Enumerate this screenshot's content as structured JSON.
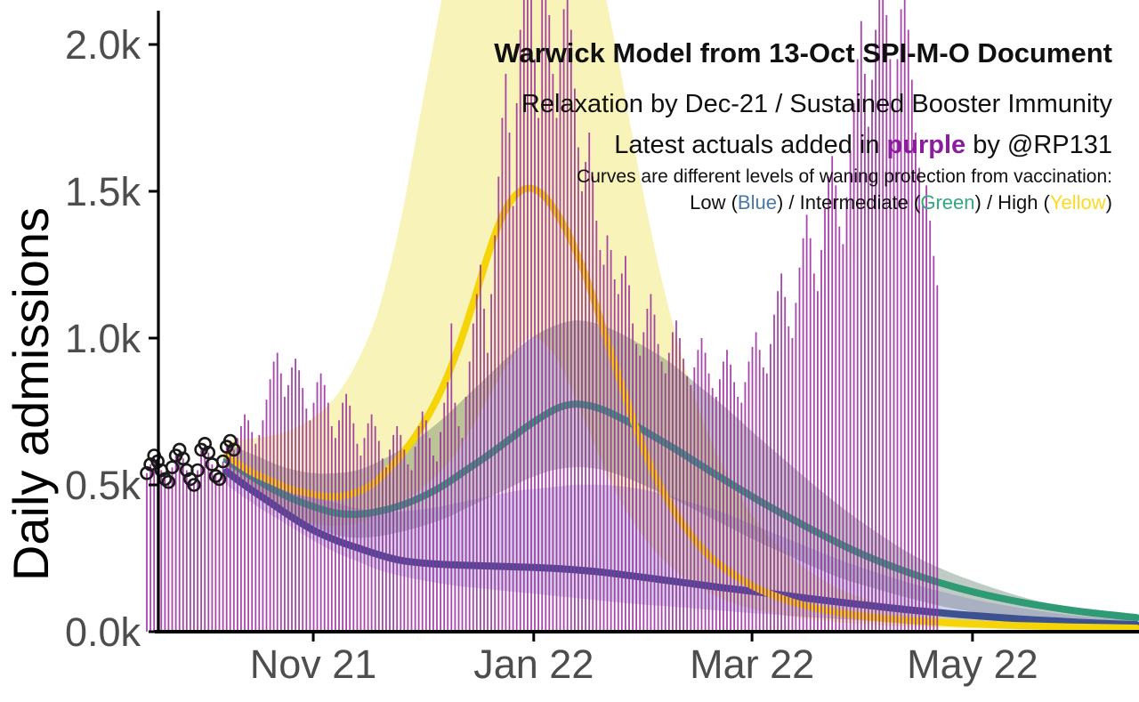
{
  "chart_data": {
    "type": "bar",
    "title": "Warwick Model from 13-Oct SPI-M-O Document",
    "subtitle1": "Relaxation by Dec-21 / Sustained Booster Immunity",
    "subtitle2": {
      "pre": "Latest actuals added in ",
      "word": "purple",
      "post": " by @RP131"
    },
    "notes": {
      "waning_header": "Curves are different levels of waning protection from vaccination:",
      "low_pre": "Low (",
      "low_word": "Blue",
      "mid_pre": ") / Intermediate (",
      "mid_word": "Green",
      "high_pre": ") / High (",
      "high_word": "Yellow",
      "high_post": ")"
    },
    "ylabel": "Daily admissions",
    "y_unit": "k (thousands of admissions per day)",
    "ylim": [
      0,
      2.15
    ],
    "x_unit": "days (one purple bar per day)",
    "x_day_range": [
      -3,
      274
    ],
    "y_ticks": [
      {
        "label": "0.0k",
        "value": 0
      },
      {
        "label": "0.5k",
        "value": 0.5
      },
      {
        "label": "1.0k",
        "value": 1.0
      },
      {
        "label": "1.5k",
        "value": 1.5
      },
      {
        "label": "2.0k",
        "value": 2.0
      }
    ],
    "x_ticks": [
      {
        "label": "Nov 21",
        "day": 45.9
      },
      {
        "label": "Jan 22",
        "day": 106.7
      },
      {
        "label": "Mar 22",
        "day": 166.9
      },
      {
        "label": "May 22",
        "day": 227.7
      }
    ],
    "series": {
      "actuals_bars": {
        "name": "Latest actual daily admissions (purple bars)",
        "start_day": 0,
        "clip_value": 2.15,
        "values": [
          0.54,
          0.57,
          0.6,
          0.58,
          0.55,
          0.52,
          0.51,
          0.56,
          0.6,
          0.62,
          0.59,
          0.55,
          0.52,
          0.5,
          0.55,
          0.62,
          0.64,
          0.61,
          0.57,
          0.53,
          0.52,
          0.58,
          0.63,
          0.65,
          0.62,
          0.66,
          0.7,
          0.74,
          0.72,
          0.68,
          0.64,
          0.67,
          0.72,
          0.79,
          0.86,
          0.92,
          0.95,
          0.88,
          0.8,
          0.84,
          0.9,
          0.93,
          0.89,
          0.83,
          0.76,
          0.72,
          0.78,
          0.85,
          0.88,
          0.84,
          0.78,
          0.7,
          0.66,
          0.72,
          0.78,
          0.81,
          0.77,
          0.71,
          0.64,
          0.6,
          0.66,
          0.71,
          0.74,
          0.7,
          0.65,
          0.59,
          0.56,
          0.62,
          0.67,
          0.7,
          0.67,
          0.62,
          0.57,
          0.55,
          0.63,
          0.7,
          0.75,
          0.72,
          0.66,
          0.6,
          0.58,
          0.68,
          0.78,
          0.85,
          1.05,
          0.78,
          0.7,
          0.66,
          0.8,
          0.92,
          1.05,
          1.15,
          1.25,
          1.1,
          0.95,
          1.15,
          1.35,
          1.55,
          1.75,
          1.9,
          1.7,
          1.45,
          1.8,
          2.05,
          2.18,
          2.2,
          2.16,
          1.95,
          1.75,
          2.18,
          2.2,
          2.1,
          1.9,
          1.75,
          1.95,
          2.12,
          2.2,
          2.05,
          1.85,
          1.65,
          1.5,
          1.6,
          1.7,
          1.55,
          1.4,
          1.3,
          1.25,
          1.35,
          1.3,
          1.2,
          1.15,
          1.22,
          1.28,
          1.18,
          1.05,
          0.98,
          0.94,
          1.02,
          1.1,
          1.15,
          1.08,
          0.98,
          0.92,
          0.88,
          0.95,
          1.02,
          1.06,
          1.0,
          0.93,
          0.87,
          0.84,
          0.9,
          0.96,
          1.0,
          0.95,
          0.88,
          0.83,
          0.8,
          0.86,
          0.92,
          0.96,
          0.91,
          0.85,
          0.8,
          0.78,
          0.85,
          0.92,
          0.97,
          1.02,
          0.96,
          0.9,
          0.88,
          0.98,
          1.08,
          1.16,
          1.22,
          1.14,
          1.04,
          1.0,
          1.12,
          1.24,
          1.34,
          1.42,
          1.34,
          1.22,
          1.16,
          1.3,
          1.44,
          1.55,
          1.62,
          1.52,
          1.38,
          1.32,
          1.48,
          1.64,
          1.8,
          1.95,
          2.08,
          1.9,
          1.72,
          1.88,
          2.05,
          2.2,
          2.18,
          2.1,
          1.95,
          1.78,
          1.95,
          2.12,
          2.2,
          2.05,
          1.88,
          1.7,
          1.58,
          1.45,
          1.52,
          1.4,
          1.28,
          1.18
        ]
      },
      "document_actuals_points": {
        "name": "Actuals shown in SPI-M-O document (black open circles)",
        "start_day": 0,
        "values": [
          0.54,
          0.57,
          0.6,
          0.58,
          0.55,
          0.52,
          0.51,
          0.56,
          0.6,
          0.62,
          0.59,
          0.55,
          0.52,
          0.5,
          0.55,
          0.62,
          0.64,
          0.61,
          0.57,
          0.53,
          0.52,
          0.58,
          0.63,
          0.65,
          0.62
        ]
      },
      "model_low_waning_blue": {
        "name": "Low waning (Blue)",
        "points": [
          [
            22,
            0.545
          ],
          [
            28,
            0.49
          ],
          [
            34,
            0.44
          ],
          [
            40,
            0.39
          ],
          [
            46,
            0.345
          ],
          [
            52,
            0.312
          ],
          [
            58,
            0.286
          ],
          [
            64,
            0.262
          ],
          [
            70,
            0.243
          ],
          [
            78,
            0.232
          ],
          [
            86,
            0.227
          ],
          [
            94,
            0.224
          ],
          [
            102,
            0.221
          ],
          [
            110,
            0.217
          ],
          [
            118,
            0.211
          ],
          [
            126,
            0.202
          ],
          [
            134,
            0.19
          ],
          [
            142,
            0.177
          ],
          [
            150,
            0.164
          ],
          [
            158,
            0.151
          ],
          [
            166,
            0.139
          ],
          [
            174,
            0.127
          ],
          [
            182,
            0.114
          ],
          [
            190,
            0.102
          ],
          [
            198,
            0.091
          ],
          [
            206,
            0.08
          ],
          [
            214,
            0.07
          ],
          [
            222,
            0.061
          ],
          [
            230,
            0.053
          ],
          [
            240,
            0.044
          ],
          [
            250,
            0.037
          ],
          [
            262,
            0.029
          ],
          [
            273,
            0.024
          ]
        ]
      },
      "model_intermediate_waning_green": {
        "name": "Intermediate waning (Green)",
        "points": [
          [
            22,
            0.585
          ],
          [
            30,
            0.52
          ],
          [
            38,
            0.465
          ],
          [
            45,
            0.43
          ],
          [
            52,
            0.405
          ],
          [
            58,
            0.4
          ],
          [
            64,
            0.41
          ],
          [
            70,
            0.43
          ],
          [
            76,
            0.46
          ],
          [
            82,
            0.5
          ],
          [
            88,
            0.55
          ],
          [
            94,
            0.6
          ],
          [
            100,
            0.655
          ],
          [
            105,
            0.7
          ],
          [
            110,
            0.74
          ],
          [
            114,
            0.765
          ],
          [
            118,
            0.775
          ],
          [
            122,
            0.77
          ],
          [
            126,
            0.755
          ],
          [
            130,
            0.732
          ],
          [
            135,
            0.7
          ],
          [
            140,
            0.664
          ],
          [
            146,
            0.62
          ],
          [
            152,
            0.573
          ],
          [
            158,
            0.527
          ],
          [
            164,
            0.482
          ],
          [
            170,
            0.438
          ],
          [
            177,
            0.39
          ],
          [
            184,
            0.344
          ],
          [
            191,
            0.3
          ],
          [
            198,
            0.26
          ],
          [
            206,
            0.22
          ],
          [
            214,
            0.185
          ],
          [
            222,
            0.155
          ],
          [
            230,
            0.129
          ],
          [
            240,
            0.103
          ],
          [
            250,
            0.082
          ],
          [
            260,
            0.065
          ],
          [
            273,
            0.048
          ]
        ]
      },
      "model_high_waning_yellow": {
        "name": "High waning (Yellow)",
        "points": [
          [
            22,
            0.6
          ],
          [
            28,
            0.55
          ],
          [
            34,
            0.515
          ],
          [
            40,
            0.485
          ],
          [
            46,
            0.468
          ],
          [
            51,
            0.46
          ],
          [
            56,
            0.468
          ],
          [
            62,
            0.5
          ],
          [
            66,
            0.545
          ],
          [
            70,
            0.6
          ],
          [
            74,
            0.665
          ],
          [
            78,
            0.745
          ],
          [
            82,
            0.845
          ],
          [
            86,
            0.97
          ],
          [
            90,
            1.12
          ],
          [
            94,
            1.28
          ],
          [
            97,
            1.385
          ],
          [
            100,
            1.46
          ],
          [
            103,
            1.5
          ],
          [
            106,
            1.51
          ],
          [
            109,
            1.49
          ],
          [
            112,
            1.445
          ],
          [
            116,
            1.36
          ],
          [
            120,
            1.245
          ],
          [
            124,
            1.105
          ],
          [
            128,
            0.95
          ],
          [
            132,
            0.8
          ],
          [
            136,
            0.655
          ],
          [
            140,
            0.535
          ],
          [
            145,
            0.42
          ],
          [
            150,
            0.33
          ],
          [
            155,
            0.26
          ],
          [
            160,
            0.21
          ],
          [
            166,
            0.163
          ],
          [
            172,
            0.128
          ],
          [
            180,
            0.094
          ],
          [
            190,
            0.066
          ],
          [
            200,
            0.049
          ],
          [
            212,
            0.037
          ],
          [
            225,
            0.028
          ],
          [
            240,
            0.021
          ],
          [
            255,
            0.016
          ],
          [
            273,
            0.012
          ]
        ]
      }
    },
    "bands": {
      "high_waning_yellow_ci": [
        [
          22,
          0.56,
          0.65
        ],
        [
          30,
          0.46,
          0.66
        ],
        [
          38,
          0.4,
          0.68
        ],
        [
          46,
          0.37,
          0.73
        ],
        [
          52,
          0.36,
          0.8
        ],
        [
          58,
          0.37,
          0.92
        ],
        [
          64,
          0.4,
          1.1
        ],
        [
          70,
          0.44,
          1.4
        ],
        [
          76,
          0.49,
          1.8
        ],
        [
          82,
          0.56,
          2.2
        ],
        [
          88,
          0.66,
          2.6
        ],
        [
          100,
          0.92,
          2.6
        ],
        [
          106,
          1.0,
          2.6
        ],
        [
          112,
          0.95,
          2.6
        ],
        [
          118,
          0.8,
          2.55
        ],
        [
          124,
          0.62,
          2.3
        ],
        [
          130,
          0.46,
          1.95
        ],
        [
          136,
          0.34,
          1.55
        ],
        [
          142,
          0.25,
          1.2
        ],
        [
          148,
          0.185,
          0.92
        ],
        [
          154,
          0.14,
          0.7
        ],
        [
          160,
          0.105,
          0.54
        ],
        [
          168,
          0.075,
          0.38
        ],
        [
          176,
          0.055,
          0.27
        ],
        [
          186,
          0.038,
          0.18
        ],
        [
          196,
          0.027,
          0.12
        ],
        [
          208,
          0.018,
          0.08
        ],
        [
          220,
          0.013,
          0.055
        ],
        [
          235,
          0.009,
          0.035
        ],
        [
          255,
          0.006,
          0.022
        ],
        [
          273,
          0.005,
          0.015
        ]
      ],
      "intermediate_waning_green_ci": [
        [
          22,
          0.54,
          0.64
        ],
        [
          30,
          0.46,
          0.6
        ],
        [
          38,
          0.4,
          0.56
        ],
        [
          46,
          0.36,
          0.54
        ],
        [
          52,
          0.33,
          0.54
        ],
        [
          58,
          0.32,
          0.55
        ],
        [
          64,
          0.325,
          0.58
        ],
        [
          70,
          0.34,
          0.62
        ],
        [
          76,
          0.36,
          0.67
        ],
        [
          82,
          0.385,
          0.73
        ],
        [
          88,
          0.42,
          0.8
        ],
        [
          94,
          0.455,
          0.87
        ],
        [
          100,
          0.49,
          0.94
        ],
        [
          106,
          0.525,
          1.0
        ],
        [
          112,
          0.55,
          1.04
        ],
        [
          118,
          0.56,
          1.06
        ],
        [
          124,
          0.555,
          1.05
        ],
        [
          130,
          0.535,
          1.02
        ],
        [
          136,
          0.505,
          0.98
        ],
        [
          144,
          0.46,
          0.92
        ],
        [
          152,
          0.41,
          0.84
        ],
        [
          160,
          0.36,
          0.76
        ],
        [
          168,
          0.31,
          0.67
        ],
        [
          176,
          0.265,
          0.585
        ],
        [
          184,
          0.22,
          0.5
        ],
        [
          192,
          0.18,
          0.42
        ],
        [
          200,
          0.15,
          0.35
        ],
        [
          210,
          0.115,
          0.27
        ],
        [
          220,
          0.085,
          0.21
        ],
        [
          232,
          0.06,
          0.155
        ],
        [
          244,
          0.042,
          0.11
        ],
        [
          258,
          0.028,
          0.075
        ],
        [
          273,
          0.02,
          0.05
        ]
      ],
      "low_waning_blue_ci": [
        [
          22,
          0.5,
          0.6
        ],
        [
          30,
          0.43,
          0.55
        ],
        [
          38,
          0.37,
          0.5
        ],
        [
          46,
          0.31,
          0.46
        ],
        [
          52,
          0.27,
          0.44
        ],
        [
          58,
          0.24,
          0.42
        ],
        [
          64,
          0.21,
          0.41
        ],
        [
          70,
          0.19,
          0.41
        ],
        [
          78,
          0.17,
          0.42
        ],
        [
          86,
          0.155,
          0.44
        ],
        [
          94,
          0.145,
          0.46
        ],
        [
          102,
          0.135,
          0.48
        ],
        [
          110,
          0.125,
          0.49
        ],
        [
          118,
          0.115,
          0.5
        ],
        [
          126,
          0.105,
          0.5
        ],
        [
          134,
          0.095,
          0.49
        ],
        [
          142,
          0.088,
          0.47
        ],
        [
          150,
          0.08,
          0.44
        ],
        [
          158,
          0.072,
          0.41
        ],
        [
          166,
          0.064,
          0.37
        ],
        [
          174,
          0.057,
          0.33
        ],
        [
          182,
          0.05,
          0.29
        ],
        [
          190,
          0.044,
          0.25
        ],
        [
          198,
          0.038,
          0.215
        ],
        [
          208,
          0.031,
          0.175
        ],
        [
          218,
          0.025,
          0.14
        ],
        [
          230,
          0.019,
          0.105
        ],
        [
          244,
          0.014,
          0.075
        ],
        [
          258,
          0.011,
          0.052
        ],
        [
          273,
          0.008,
          0.038
        ]
      ]
    },
    "colors": {
      "bar_purple": "#9B2C9F",
      "circle_black": "#1a1a1a",
      "curve_yellow": "#F5D408",
      "curve_green": "#2E9B74",
      "curve_blue": "#3D5191",
      "band_yellow": "#F3E97F",
      "band_green": "#44604F",
      "band_blue": "#6F74B8",
      "text_purple": "#8B1C9E",
      "text_blue": "#4878A8",
      "text_green": "#32A87E",
      "text_yellow": "#FFD91F",
      "axis_black": "#000000",
      "tick_label_gray": "#4d4d4d"
    },
    "legend_position": "top-right (as text annotation)",
    "grid": "off"
  }
}
